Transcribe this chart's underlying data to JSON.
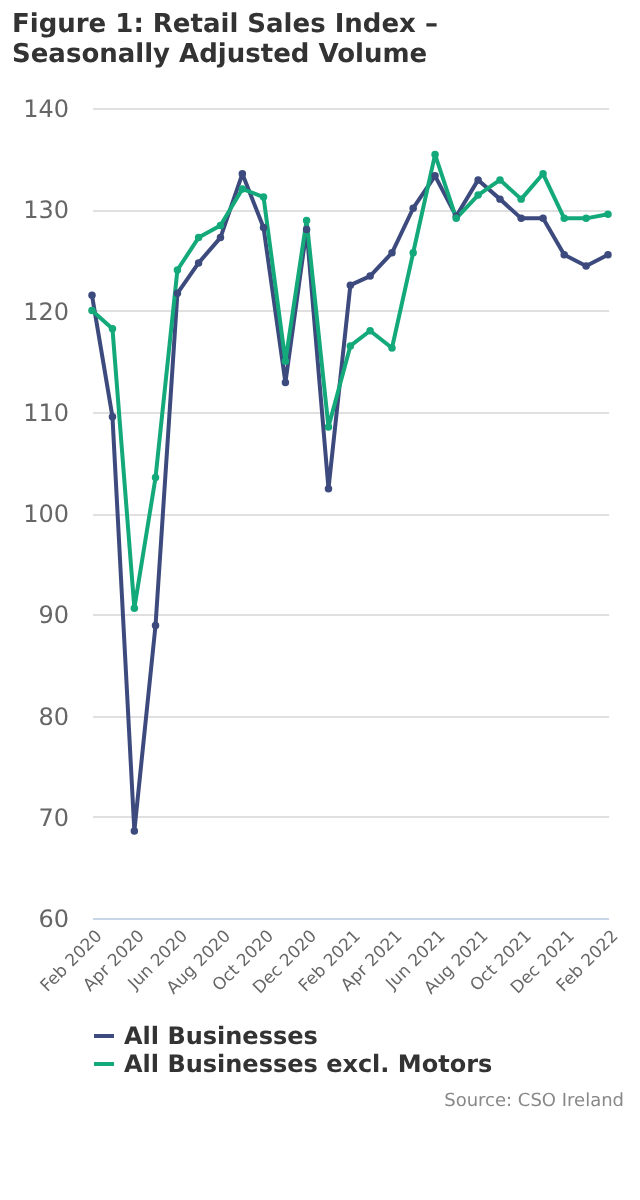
{
  "chart_data": {
    "type": "line",
    "title": "Figure 1: Retail Sales Index – Seasonally Adjusted Volume",
    "x": [
      "2020-02",
      "2020-03",
      "2020-04",
      "2020-05",
      "2020-06",
      "2020-07",
      "2020-08",
      "2020-09",
      "2020-10",
      "2020-11",
      "2020-12",
      "2021-01",
      "2021-02",
      "2021-03",
      "2021-04",
      "2021-05",
      "2021-06",
      "2021-07",
      "2021-08",
      "2021-09",
      "2021-10",
      "2021-11",
      "2021-12",
      "2022-01",
      "2022-02"
    ],
    "series": [
      {
        "name": "All Businesses",
        "color": "#3c4a7e",
        "values": [
          121.5,
          109.5,
          68.6,
          88.9,
          121.7,
          124.7,
          127.2,
          133.5,
          128.2,
          112.9,
          128,
          102.4,
          122.5,
          123.4,
          125.7,
          130.1,
          133.3,
          129.3,
          132.9,
          131,
          129.1,
          129.1,
          125.5,
          124.4,
          125.5
        ]
      },
      {
        "name": "All Businesses excl. Motors",
        "color": "#14a97a",
        "values": [
          120,
          118.2,
          90.6,
          103.5,
          124,
          127.2,
          128.4,
          132,
          131.2,
          115,
          128.9,
          108.5,
          116.5,
          118,
          116.3,
          125.7,
          135.4,
          129.1,
          131.4,
          132.9,
          131,
          133.5,
          129.1,
          129.1,
          129.5
        ]
      }
    ],
    "xlim": [
      "2020-02",
      "2022-02"
    ],
    "xticks": [
      {
        "value": "2020-02",
        "label": "Feb 2020"
      },
      {
        "value": "2020-04",
        "label": "Apr 2020"
      },
      {
        "value": "2020-06",
        "label": "Jun 2020"
      },
      {
        "value": "2020-08",
        "label": "Aug 2020"
      },
      {
        "value": "2020-10",
        "label": "Oct 2020"
      },
      {
        "value": "2020-12",
        "label": "Dec 2020"
      },
      {
        "value": "2021-02",
        "label": "Feb 2021"
      },
      {
        "value": "2021-04",
        "label": "Apr 2021"
      },
      {
        "value": "2021-06",
        "label": "Jun 2021"
      },
      {
        "value": "2021-08",
        "label": "Aug 2021"
      },
      {
        "value": "2021-10",
        "label": "Oct 2021"
      },
      {
        "value": "2021-12",
        "label": "Dec 2021"
      },
      {
        "value": "2022-02",
        "label": "Feb 2022"
      }
    ],
    "ylim": [
      60,
      140
    ],
    "yticks": [
      60,
      70,
      80,
      90,
      100,
      110,
      120,
      130,
      140
    ],
    "grid": "y",
    "legend": "bottom",
    "marker": "circle",
    "line_style": "solid",
    "annotations": [
      "Source: CSO Ireland"
    ]
  }
}
